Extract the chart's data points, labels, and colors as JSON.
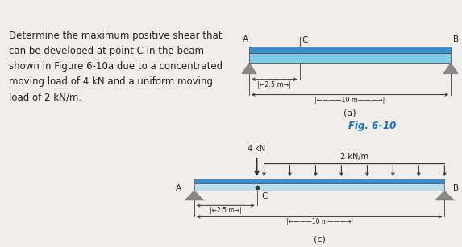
{
  "bg_color": "#d4d0cc",
  "white_box_color": "#f0eeeb",
  "diagram_box_color": "#e8e6e3",
  "text_block": {
    "text": "Determine the maximum positive shear that\ncan be developed at point C in the beam\nshown in Figure 6-10a due to a concentrated\nmoving load of 4 kN and a uniform moving\nload of 2 kN/m.",
    "fontsize": 8.5,
    "color": "#222222"
  },
  "fig_label": "Fig. 6–10",
  "fig_label_color": "#1a6fbe",
  "diagram_a": {
    "beam_body_color": "#7ecce8",
    "beam_top_color": "#3a8fcc",
    "beam_edge_color": "#555555",
    "support_color": "#888888",
    "label_A": "A",
    "label_B": "B",
    "label_C": "C",
    "sub_label": "(a)"
  },
  "diagram_c": {
    "beam_body_color": "#b8dde8",
    "beam_top_color": "#3a8fcc",
    "beam_edge_color": "#666666",
    "support_color": "#888888",
    "load_color": "#333333",
    "label_A": "A",
    "label_B": "B",
    "label_C": "C",
    "load_4kN": "4 kN",
    "load_dist": "2 kN/m",
    "sub_label": "(c)",
    "n_dist_arrows": 8
  }
}
